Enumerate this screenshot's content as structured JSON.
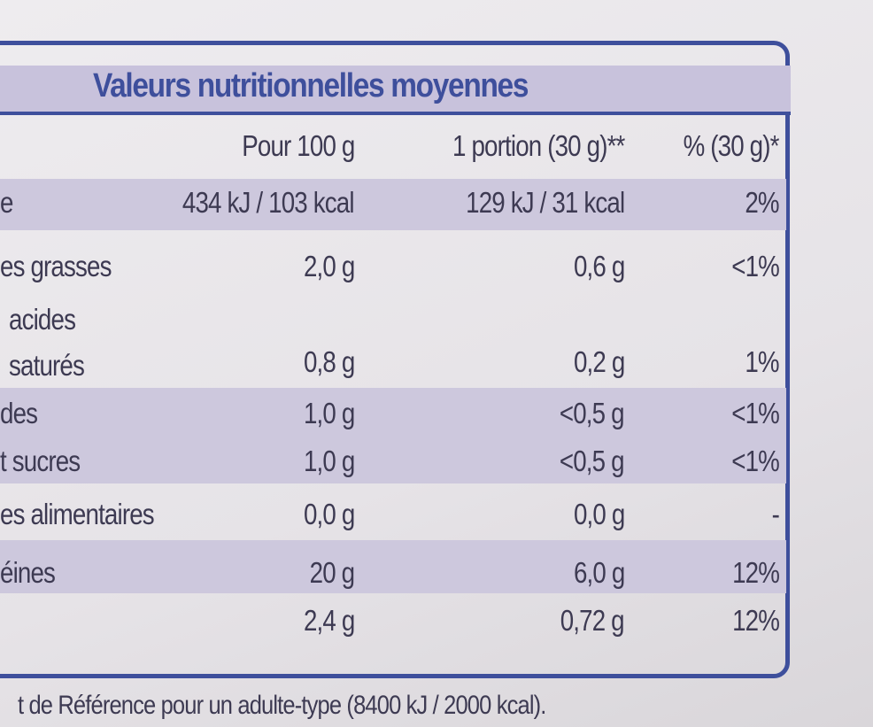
{
  "title": "Valeurs nutritionnelles moyennes",
  "table": {
    "header": [
      "Pour 100 g",
      "1 portion (30 g)**",
      "% (30 g)*"
    ],
    "rows": [
      [
        "e",
        "434 kJ / 103 kcal",
        "129 kJ / 31 kcal",
        "2%"
      ],
      [
        "es grasses",
        "2,0 g",
        "0,6 g",
        "<1%"
      ],
      [
        "acides saturés",
        "0,8 g",
        "0,2 g",
        "1%"
      ],
      [
        "des",
        "1,0 g",
        "<0,5 g",
        "<1%"
      ],
      [
        "t sucres",
        "1,0 g",
        "<0,5 g",
        "<1%"
      ],
      [
        "es alimentaires",
        "0,0 g",
        "0,0 g",
        "-"
      ],
      [
        "éines",
        "20 g",
        "6,0 g",
        "12%"
      ],
      [
        null,
        "2,4 g",
        "0,72 g",
        "12%"
      ]
    ]
  },
  "footnote": "t de Référence pour un adulte-type (8400 kJ / 2000 kcal)."
}
